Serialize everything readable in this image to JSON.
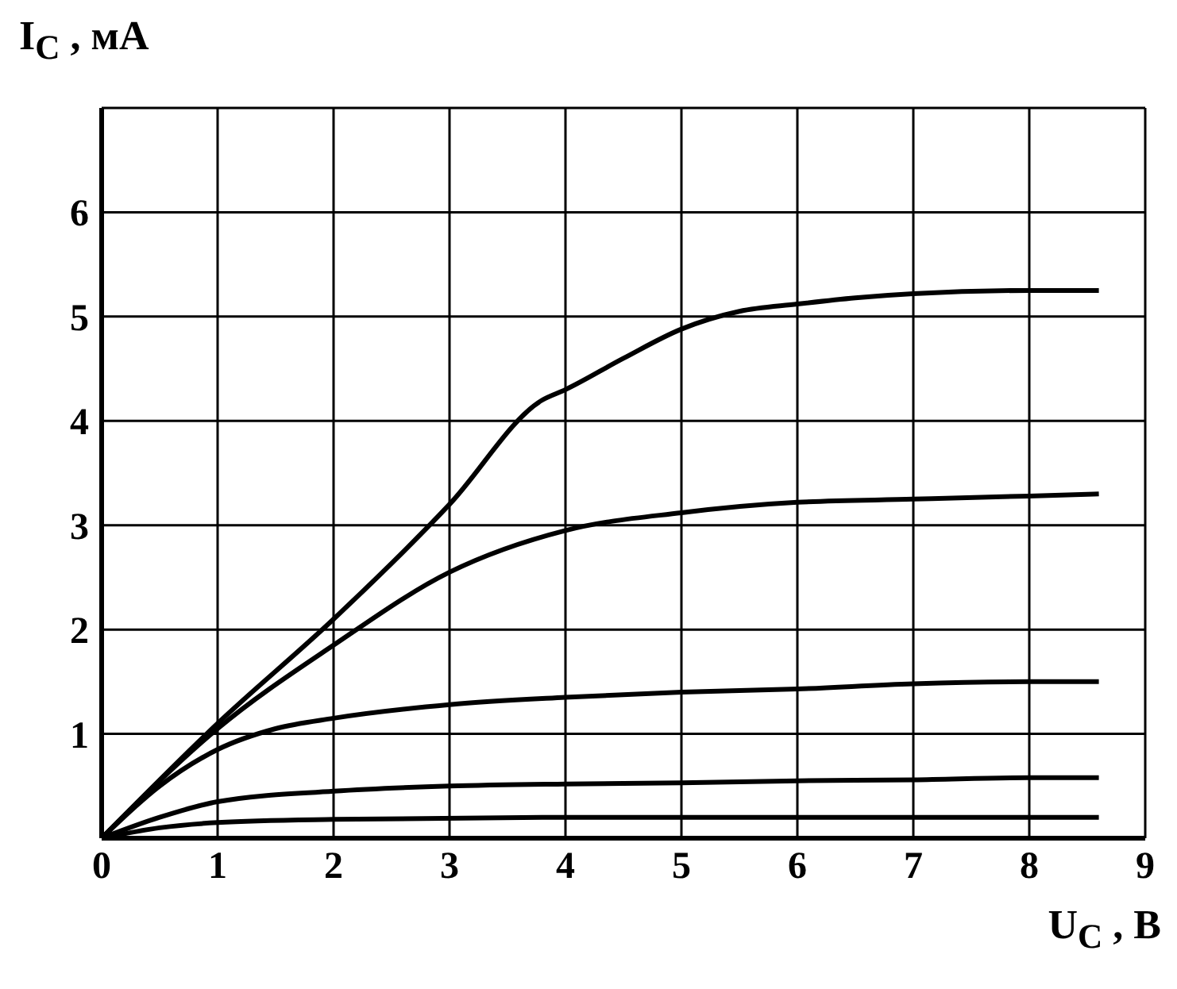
{
  "chart_data": {
    "type": "line",
    "xlabel": "U$_{C}$ , В",
    "ylabel": "I$_{C}$ , мА",
    "xlim": [
      0,
      9
    ],
    "xticks": [
      0,
      1,
      2,
      3,
      4,
      5,
      6,
      7,
      8,
      9
    ],
    "ylim": [
      0,
      7
    ],
    "yticks": [
      {
        "value": 0,
        "label": null
      },
      1,
      2,
      3,
      4,
      5,
      6,
      {
        "value": 7,
        "label": null
      }
    ],
    "grid": true,
    "marker": "none",
    "line_style": "solid",
    "series": [
      {
        "color": "#000000",
        "x": [
          0,
          1,
          2,
          3,
          3.8,
          4,
          4.5,
          5,
          5.5,
          6,
          6.5,
          7,
          8,
          8.6
        ],
        "values": [
          0,
          1.1,
          2.1,
          3.2,
          4.2,
          4.3,
          4.6,
          4.88,
          5.05,
          5.12,
          5.18,
          5.22,
          5.25,
          5.25
        ]
      },
      {
        "color": "#000000",
        "x": [
          0,
          1,
          2,
          3,
          4,
          5,
          6,
          7,
          8,
          8.6
        ],
        "values": [
          0,
          1.05,
          1.85,
          2.55,
          2.95,
          3.12,
          3.22,
          3.25,
          3.28,
          3.3
        ]
      },
      {
        "color": "#000000",
        "x": [
          0,
          0.5,
          1,
          1.5,
          2,
          3,
          4,
          5,
          6,
          7,
          8,
          8.6
        ],
        "values": [
          0,
          0.5,
          0.85,
          1.05,
          1.15,
          1.28,
          1.35,
          1.4,
          1.43,
          1.48,
          1.5,
          1.5
        ]
      },
      {
        "color": "#000000",
        "x": [
          0,
          0.5,
          1,
          2,
          3,
          4,
          5,
          6,
          7,
          8,
          8.6
        ],
        "values": [
          0,
          0.2,
          0.35,
          0.45,
          0.5,
          0.52,
          0.53,
          0.55,
          0.56,
          0.58,
          0.58
        ]
      },
      {
        "color": "#000000",
        "x": [
          0,
          0.5,
          1,
          2,
          4,
          8.6
        ],
        "values": [
          0,
          0.1,
          0.15,
          0.18,
          0.2,
          0.2
        ]
      }
    ]
  }
}
